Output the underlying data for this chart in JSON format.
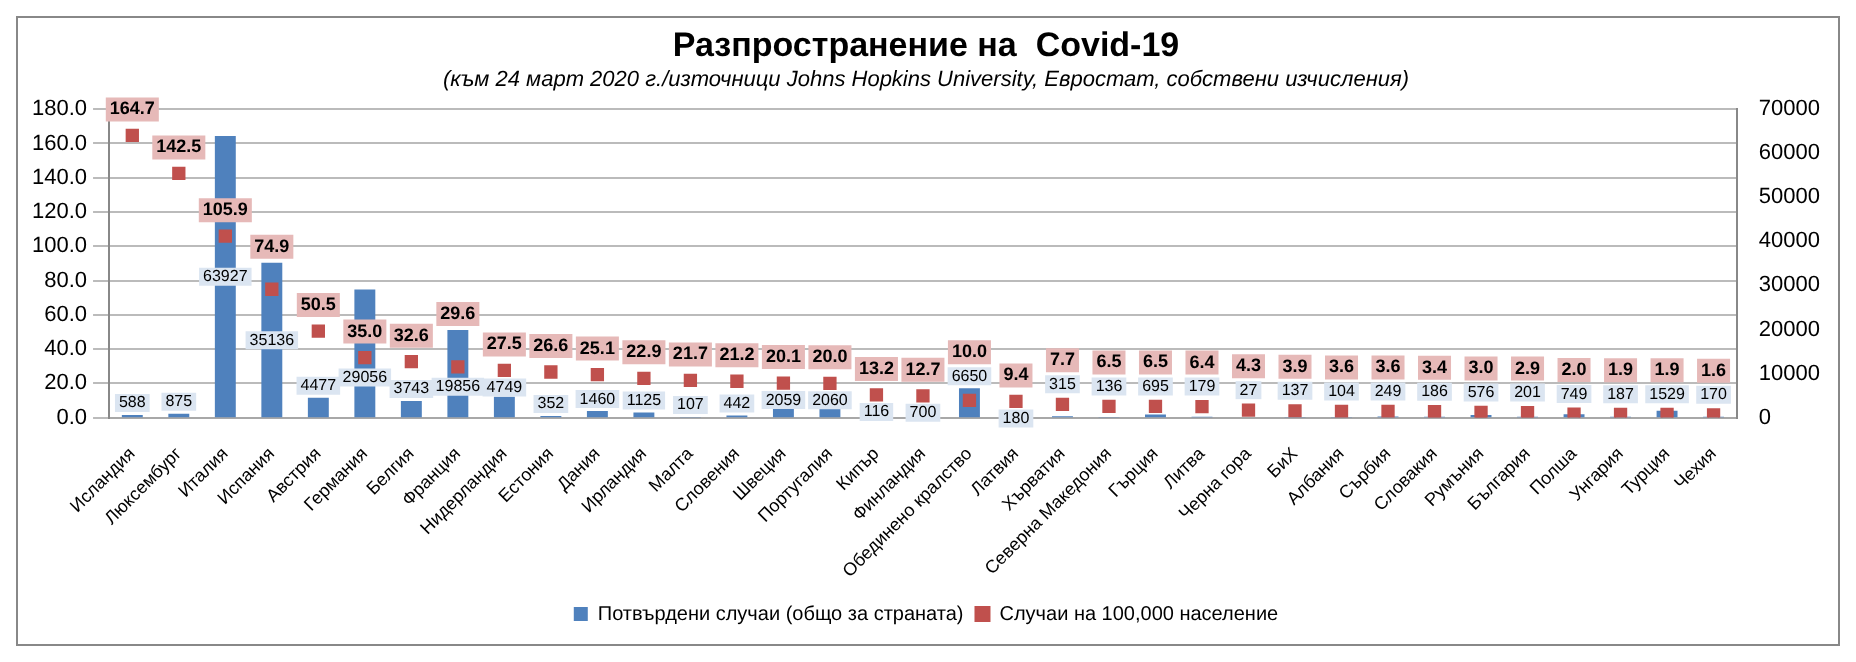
{
  "chart_data": {
    "type": "bar",
    "title": "Разпространение на  Covid-19",
    "subtitle": "(към 24 март 2020 г./източници Johns Hopkins University, Евростат, собствени изчисления)",
    "categories": [
      "Исландия",
      "Люксембург",
      "Италия",
      "Испания",
      "Австрия",
      "Германия",
      "Белгия",
      "Франция",
      "Нидерландия",
      "Естония",
      "Дания",
      "Ирландия",
      "Малта",
      "Словения",
      "Швеция",
      "Португалия",
      "Кипър",
      "Финландия",
      "Обединено кралство",
      "Латвия",
      "Хърватия",
      "Северна Македония",
      "Гърция",
      "Литва",
      "Черна гора",
      "БиХ",
      "Албания",
      "Сърбия",
      "Словакия",
      "Румъния",
      "България",
      "Полша",
      "Унгария",
      "Турция",
      "Чехия"
    ],
    "series": [
      {
        "name": "Потвърдени случаи (общо за страната)",
        "type": "bar",
        "axis": "y2",
        "color": "#4f81bd",
        "values": [
          588,
          875,
          63927,
          35136,
          4477,
          29056,
          3743,
          19856,
          4749,
          352,
          1460,
          1125,
          107,
          442,
          2059,
          2060,
          116,
          700,
          6650,
          180,
          315,
          136,
          695,
          179,
          27,
          137,
          104,
          249,
          186,
          576,
          201,
          749,
          187,
          1529,
          170
        ],
        "value_labels": [
          "588",
          "875",
          "63927",
          "35136",
          "4477",
          "29056",
          "3743",
          "19856",
          "4749",
          "352",
          "1460",
          "1125",
          "107",
          "442",
          "2059",
          "2060",
          "116",
          "700",
          "6650",
          "180",
          "315",
          "136",
          "695",
          "179",
          "27",
          "137",
          "104",
          "249",
          "186",
          "576",
          "201",
          "749",
          "187",
          "1529",
          "170"
        ]
      },
      {
        "name": "Случаи на 100,000 население",
        "type": "scatter",
        "axis": "y",
        "color": "#c0504d",
        "marker": "square",
        "x": [
          "Исландия",
          "Люксембург",
          "Италия",
          "Испания",
          "Австрия",
          "Германия",
          "Белгия",
          "Франция",
          "Нидерландия",
          "Естония",
          "Дания",
          "Ирландия",
          "Малта",
          "Словения",
          "Швеция",
          "Португалия",
          "Кипър",
          "Финландия",
          "Обединено кралство",
          "Латвия",
          "Хърватия",
          "Северна Македония",
          "Гърция",
          "Литва",
          "Черна гора",
          "БиХ",
          "Албания",
          "Сърбия",
          "Словакия",
          "Румъния",
          "България",
          "Полша",
          "Унгария",
          "Турция",
          "Чехия"
        ],
        "values": [
          164.7,
          142.5,
          105.9,
          74.9,
          50.5,
          35.0,
          32.6,
          29.6,
          27.5,
          26.6,
          25.1,
          22.9,
          21.7,
          21.2,
          20.1,
          20.0,
          13.2,
          12.7,
          10.0,
          9.4,
          7.7,
          6.5,
          6.5,
          6.4,
          4.3,
          3.9,
          3.6,
          3.6,
          3.4,
          3.0,
          2.9,
          2.0,
          1.9,
          1.9,
          1.6
        ],
        "value_labels": [
          "164.7",
          "142.5",
          "105.9",
          "74.9",
          "50.5",
          "35.0",
          "32.6",
          "29.6",
          "27.5",
          "26.6",
          "25.1",
          "22.9",
          "21.7",
          "21.2",
          "20.1",
          "20.0",
          "13.2",
          "12.7",
          "10.0",
          "9.4",
          "7.7",
          "6.5",
          "6.5",
          "6.4",
          "4.3",
          "3.9",
          "3.6",
          "3.6",
          "3.4",
          "3.0",
          "2.9",
          "2.0",
          "1.9",
          "1.9",
          "1.6"
        ]
      }
    ],
    "ylim": [
      0,
      180
    ],
    "yticks": [
      {
        "value": 0,
        "label": "0.0"
      },
      {
        "value": 20,
        "label": "20.0"
      },
      {
        "value": 40,
        "label": "40.0"
      },
      {
        "value": 60,
        "label": "60.0"
      },
      {
        "value": 80,
        "label": "80.0"
      },
      {
        "value": 100,
        "label": "100.0"
      },
      {
        "value": 120,
        "label": "120.0"
      },
      {
        "value": 140,
        "label": "140.0"
      },
      {
        "value": 160,
        "label": "160.0"
      },
      {
        "value": 180,
        "label": "180.0"
      }
    ],
    "y2lim": [
      0,
      70000
    ],
    "y2ticks": [
      0,
      10000,
      20000,
      30000,
      40000,
      50000,
      60000,
      70000
    ],
    "grid": "y",
    "legend": "bottom"
  }
}
